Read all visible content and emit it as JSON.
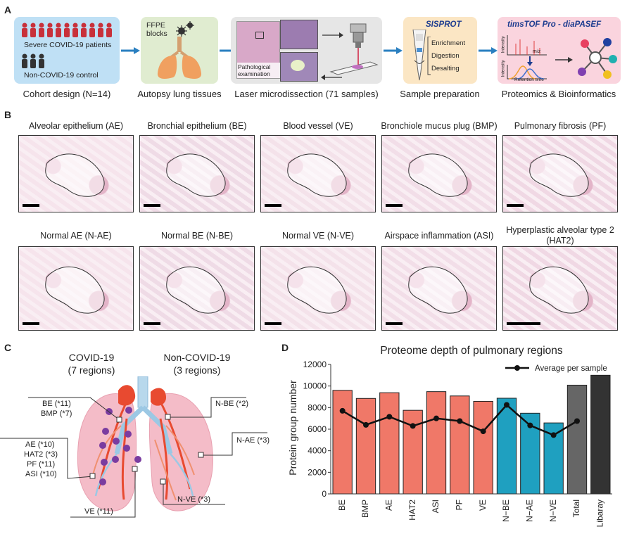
{
  "panel_labels": {
    "a": "A",
    "b": "B",
    "c": "C",
    "d": "D"
  },
  "workflow": {
    "cohort": {
      "severe": "Severe COVID-19 patients",
      "control": "Non-COVID-19 control",
      "caption": "Cohort design (N=14)"
    },
    "autopsy": {
      "ffpe": "FFPE\nblocks",
      "caption": "Autopsy lung tissues"
    },
    "lmd": {
      "exam": "Pathological\nexamination",
      "caption": "Laser microdissection (71 samples)"
    },
    "prep": {
      "brand": "SISPROT",
      "steps": [
        "Enrichment",
        "Digestion",
        "Desalting"
      ],
      "caption": "Sample preparation"
    },
    "proteomics": {
      "title": "timsTOF Pro - diaPASEF",
      "intensity": "Intensity",
      "mz": "m/z",
      "retention": "Retention time",
      "caption": "Proteomics & Bioinformatics"
    }
  },
  "micrographs": {
    "row1": [
      "Alveolar epithelium (AE)",
      "Bronchial epithelium (BE)",
      "Blood vessel (VE)",
      "Bronchiole mucus plug (BMP)",
      "Pulmonary fibrosis (PF)"
    ],
    "row2": [
      "Normal AE (N-AE)",
      "Normal BE (N-BE)",
      "Normal VE (N-VE)",
      "Airspace inflammation (ASI)",
      "Hyperplastic alveolar type 2\n(HAT2)"
    ]
  },
  "panel_c": {
    "covid_title": "COVID-19",
    "covid_sub": "(7 regions)",
    "non_title": "Non-COVID-19",
    "non_sub": "(3 regions)",
    "labels": {
      "be": "BE (*11)",
      "bmp": "BMP (*7)",
      "ae": "AE (*10)",
      "hat2": "HAT2 (*3)",
      "pf": "PF (*11)",
      "asi": "ASI (*10)",
      "ve": "VE (*11)",
      "nbe": "N-BE (*2)",
      "nae": "N-AE (*3)",
      "nve": "N-VE (*3)"
    }
  },
  "chart_data": {
    "type": "bar",
    "title": "Proteome depth of pulmonary regions",
    "ylabel": "Protein group number",
    "xlabel": "",
    "ylim": [
      0,
      12000
    ],
    "yticks": [
      0,
      2000,
      4000,
      6000,
      8000,
      10000,
      12000
    ],
    "categories": [
      "BE",
      "BMP",
      "AE",
      "HAT2",
      "ASI",
      "PF",
      "VE",
      "N−BE",
      "N−AE",
      "N−VE",
      "Total",
      "Libaray"
    ],
    "values": [
      9600,
      8850,
      9380,
      7750,
      9480,
      9080,
      8580,
      8870,
      7480,
      6580,
      10080,
      11000
    ],
    "bar_colors": [
      "#f07868",
      "#f07868",
      "#f07868",
      "#f07868",
      "#f07868",
      "#f07868",
      "#f07868",
      "#1fa0c0",
      "#1fa0c0",
      "#1fa0c0",
      "#666666",
      "#333333"
    ],
    "series": [
      {
        "name": "Average per sample",
        "type": "line",
        "values": [
          7700,
          6400,
          7150,
          6300,
          7000,
          6750,
          5800,
          8250,
          6350,
          5450,
          6750,
          null
        ]
      }
    ],
    "legend": "top-right",
    "grid": false
  }
}
